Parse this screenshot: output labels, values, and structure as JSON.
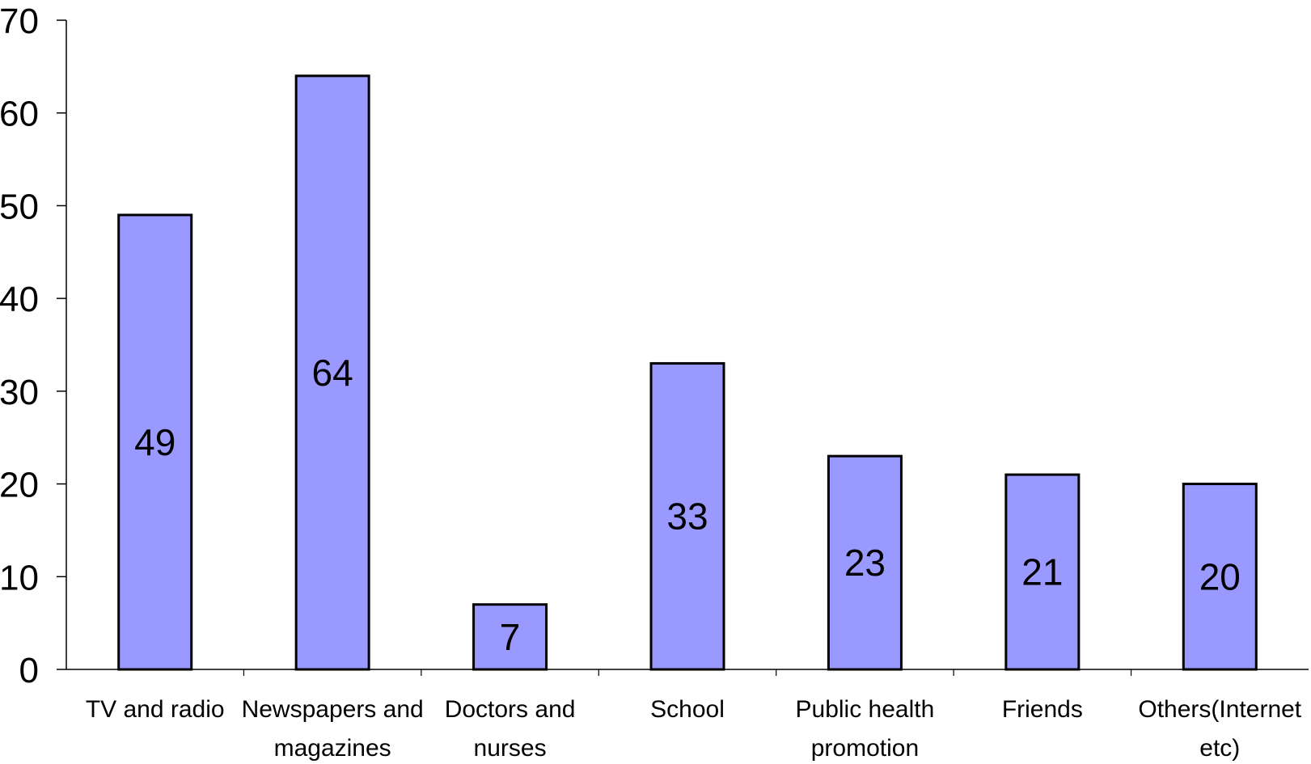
{
  "chart_data": {
    "type": "bar",
    "categories": [
      [
        "TV and radio"
      ],
      [
        "Newspapers and",
        "magazines"
      ],
      [
        "Doctors and",
        "nurses"
      ],
      [
        "School"
      ],
      [
        "Public health",
        "promotion"
      ],
      [
        "Friends"
      ],
      [
        "Others(Internet",
        "etc)"
      ]
    ],
    "values": [
      49,
      64,
      7,
      33,
      23,
      21,
      20
    ],
    "data_labels": [
      "49",
      "64",
      "7",
      "33",
      "23",
      "21",
      "20"
    ],
    "ylim": [
      0,
      70
    ],
    "yticks": [
      0,
      10,
      20,
      30,
      40,
      50,
      60,
      70
    ],
    "title": "",
    "xlabel": "",
    "ylabel": "",
    "grid": false,
    "legend": "none",
    "bar_color": "#9999ff",
    "bar_edge_color": "#000000"
  }
}
